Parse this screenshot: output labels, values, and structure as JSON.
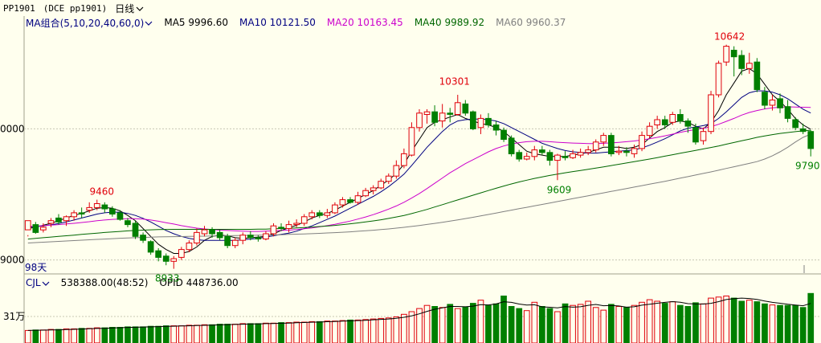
{
  "header": {
    "symbol": "PP1901",
    "contract": "(DCE pp1901)",
    "period": "日线",
    "period_icon": "chevron-down-icon"
  },
  "ma_legend": {
    "group_label": "MA组合(5,10,20,40,60,0)",
    "items": [
      {
        "label": "MA5 9996.60",
        "color": "#000000"
      },
      {
        "label": "MA10 10121.50",
        "color": "#000080"
      },
      {
        "label": "MA20 10163.45",
        "color": "#CC00CC"
      },
      {
        "label": "MA40 9989.92",
        "color": "#006600"
      },
      {
        "label": "MA60 9960.37",
        "color": "#808080"
      }
    ]
  },
  "price_axis": {
    "labels": [
      "0000",
      "9000"
    ]
  },
  "days_label": "98天",
  "annotations": {
    "high_left": "9460",
    "low_left": "8933",
    "high_mid": "10301",
    "low_mid": "9609",
    "high_right": "10642",
    "last": "9790"
  },
  "volume_legend": {
    "label": "CJL",
    "cjl": "538388.00(48:52)",
    "opid": "OPID 448736.00"
  },
  "volume_axis": {
    "label": "31万"
  },
  "colors": {
    "background": "#FFFFEE",
    "up": "#E0000A",
    "down": "#007F00",
    "grid": "#C8C8B4"
  },
  "chart_data": {
    "type": "candlestick",
    "ylim": [
      8900,
      10750
    ],
    "candles": [
      [
        9230,
        9300,
        9190,
        9180
      ],
      [
        9270,
        9210,
        9290,
        9200
      ],
      [
        9230,
        9250,
        9280,
        9210
      ],
      [
        9280,
        9300,
        9320,
        9250
      ],
      [
        9320,
        9290,
        9350,
        9270
      ],
      [
        9300,
        9330,
        9340,
        9260
      ],
      [
        9330,
        9360,
        9380,
        9300
      ],
      [
        9360,
        9350,
        9400,
        9320
      ],
      [
        9380,
        9400,
        9440,
        9360
      ],
      [
        9400,
        9430,
        9460,
        9380
      ],
      [
        9420,
        9390,
        9440,
        9360
      ],
      [
        9390,
        9350,
        9410,
        9330
      ],
      [
        9360,
        9310,
        9380,
        9300
      ],
      [
        9300,
        9270,
        9320,
        9250
      ],
      [
        9280,
        9180,
        9300,
        9160
      ],
      [
        9190,
        9150,
        9210,
        9130
      ],
      [
        9140,
        9060,
        9150,
        9040
      ],
      [
        9070,
        9020,
        9090,
        8990
      ],
      [
        9030,
        8990,
        9050,
        8960
      ],
      [
        8990,
        9010,
        9030,
        8933
      ],
      [
        9020,
        9080,
        9100,
        9000
      ],
      [
        9080,
        9130,
        9150,
        9060
      ],
      [
        9130,
        9210,
        9240,
        9110
      ],
      [
        9200,
        9230,
        9260,
        9180
      ],
      [
        9230,
        9200,
        9250,
        9170
      ],
      [
        9210,
        9170,
        9230,
        9150
      ],
      [
        9180,
        9110,
        9200,
        9090
      ],
      [
        9110,
        9150,
        9170,
        9090
      ],
      [
        9150,
        9190,
        9210,
        9120
      ],
      [
        9190,
        9170,
        9220,
        9150
      ],
      [
        9170,
        9160,
        9190,
        9140
      ],
      [
        9160,
        9200,
        9220,
        9150
      ],
      [
        9200,
        9260,
        9280,
        9180
      ],
      [
        9250,
        9240,
        9280,
        9220
      ],
      [
        9240,
        9270,
        9300,
        9210
      ],
      [
        9270,
        9280,
        9310,
        9250
      ],
      [
        9280,
        9330,
        9350,
        9260
      ],
      [
        9330,
        9360,
        9380,
        9310
      ],
      [
        9360,
        9340,
        9380,
        9320
      ],
      [
        9340,
        9360,
        9390,
        9320
      ],
      [
        9360,
        9420,
        9440,
        9350
      ],
      [
        9420,
        9460,
        9480,
        9400
      ],
      [
        9460,
        9440,
        9480,
        9430
      ],
      [
        9440,
        9490,
        9520,
        9420
      ],
      [
        9490,
        9530,
        9550,
        9480
      ],
      [
        9530,
        9550,
        9570,
        9500
      ],
      [
        9550,
        9600,
        9620,
        9540
      ],
      [
        9600,
        9640,
        9660,
        9580
      ],
      [
        9640,
        9720,
        9760,
        9620
      ],
      [
        9720,
        9810,
        9850,
        9700
      ],
      [
        9800,
        10010,
        10050,
        9790
      ],
      [
        10010,
        10120,
        10150,
        9980
      ],
      [
        10110,
        10130,
        10150,
        10040
      ],
      [
        10130,
        10050,
        10180,
        10020
      ],
      [
        10060,
        10120,
        10190,
        10010
      ],
      [
        10120,
        10110,
        10160,
        10050
      ],
      [
        10110,
        10200,
        10260,
        10100
      ],
      [
        10190,
        10120,
        10220,
        10100
      ],
      [
        10130,
        10000,
        10140,
        9990
      ],
      [
        10010,
        10080,
        10110,
        9960
      ],
      [
        10080,
        10030,
        10120,
        10010
      ],
      [
        10030,
        9990,
        10060,
        9950
      ],
      [
        9990,
        9920,
        10010,
        9900
      ],
      [
        9930,
        9810,
        9950,
        9790
      ],
      [
        9820,
        9770,
        9840,
        9750
      ],
      [
        9770,
        9790,
        9820,
        9760
      ],
      [
        9790,
        9840,
        9870,
        9760
      ],
      [
        9840,
        9820,
        9870,
        9800
      ],
      [
        9820,
        9760,
        9840,
        9720
      ],
      [
        9760,
        9800,
        9810,
        9609
      ],
      [
        9790,
        9780,
        9830,
        9760
      ],
      [
        9780,
        9810,
        9840,
        9770
      ],
      [
        9800,
        9820,
        9850,
        9780
      ],
      [
        9820,
        9840,
        9870,
        9800
      ],
      [
        9840,
        9900,
        9920,
        9820
      ],
      [
        9900,
        9950,
        9970,
        9870
      ],
      [
        9950,
        9810,
        9970,
        9790
      ],
      [
        9820,
        9830,
        9870,
        9800
      ],
      [
        9830,
        9820,
        9860,
        9790
      ],
      [
        9810,
        9850,
        9880,
        9780
      ],
      [
        9850,
        9950,
        9980,
        9830
      ],
      [
        9950,
        10020,
        10050,
        9930
      ],
      [
        10030,
        10070,
        10100,
        10000
      ],
      [
        10070,
        10030,
        10100,
        10000
      ],
      [
        10050,
        10110,
        10130,
        10030
      ],
      [
        10110,
        10060,
        10150,
        10040
      ],
      [
        10060,
        10020,
        10080,
        9970
      ],
      [
        10010,
        9900,
        10040,
        9880
      ],
      [
        9910,
        9980,
        10010,
        9880
      ],
      [
        9980,
        10260,
        10290,
        9960
      ],
      [
        10260,
        10500,
        10520,
        10240
      ],
      [
        10510,
        10630,
        10642,
        10480
      ],
      [
        10600,
        10550,
        10630,
        10400
      ],
      [
        10560,
        10460,
        10600,
        10410
      ],
      [
        10460,
        10500,
        10580,
        10420
      ],
      [
        10510,
        10300,
        10540,
        10280
      ],
      [
        10280,
        10180,
        10320,
        10150
      ],
      [
        10180,
        10220,
        10260,
        10140
      ],
      [
        10230,
        10160,
        10270,
        10120
      ],
      [
        10170,
        10080,
        10220,
        10050
      ],
      [
        10070,
        10010,
        10090,
        9990
      ],
      [
        10000,
        9980,
        10040,
        9960
      ],
      [
        9980,
        9850,
        9990,
        9790
      ]
    ],
    "ma_series": {
      "MA5": [
        9240,
        9250,
        9265,
        9280,
        9300,
        9320,
        9340,
        9355,
        9375,
        9395,
        9400,
        9395,
        9375,
        9340,
        9300,
        9240,
        9180,
        9120,
        9080,
        9050,
        9050,
        9065,
        9100,
        9150,
        9180,
        9190,
        9185,
        9170,
        9165,
        9170,
        9175,
        9180,
        9200,
        9225,
        9245,
        9265,
        9290,
        9320,
        9340,
        9355,
        9380,
        9410,
        9440,
        9470,
        9500,
        9530,
        9570,
        9610,
        9660,
        9730,
        9830,
        9920,
        10010,
        10050,
        10070,
        10090,
        10110,
        10080,
        10060,
        10040,
        10030,
        10010,
        9980,
        9930,
        9880,
        9830,
        9810,
        9800,
        9790,
        9790,
        9790,
        9800,
        9810,
        9820,
        9840,
        9860,
        9860,
        9860,
        9850,
        9860,
        9880,
        9930,
        9980,
        10010,
        10050,
        10060,
        10050,
        10020,
        10000,
        10050,
        10140,
        10260,
        10350,
        10440,
        10460,
        10420,
        10340,
        10260,
        10210,
        10150,
        10080,
        10030,
        9997
      ],
      "MA10": [
        9250,
        9255,
        9260,
        9268,
        9278,
        9290,
        9305,
        9320,
        9335,
        9350,
        9360,
        9365,
        9365,
        9355,
        9340,
        9318,
        9290,
        9258,
        9225,
        9200,
        9180,
        9165,
        9155,
        9150,
        9150,
        9150,
        9150,
        9150,
        9155,
        9160,
        9165,
        9175,
        9185,
        9195,
        9205,
        9220,
        9240,
        9260,
        9285,
        9310,
        9335,
        9365,
        9395,
        9425,
        9455,
        9485,
        9520,
        9560,
        9605,
        9655,
        9720,
        9790,
        9860,
        9920,
        9980,
        10030,
        10060,
        10070,
        10075,
        10075,
        10070,
        10060,
        10040,
        10010,
        9980,
        9950,
        9920,
        9890,
        9870,
        9850,
        9835,
        9825,
        9820,
        9815,
        9815,
        9820,
        9825,
        9830,
        9835,
        9840,
        9855,
        9875,
        9900,
        9925,
        9955,
        9985,
        10005,
        10015,
        10025,
        10040,
        10080,
        10130,
        10185,
        10240,
        10275,
        10290,
        10290,
        10280,
        10260,
        10230,
        10190,
        10150,
        10121
      ],
      "MA20": [
        9255,
        9258,
        9262,
        9266,
        9270,
        9275,
        9280,
        9286,
        9292,
        9300,
        9305,
        9310,
        9313,
        9315,
        9315,
        9312,
        9305,
        9296,
        9285,
        9274,
        9262,
        9252,
        9243,
        9237,
        9232,
        9228,
        9225,
        9222,
        9220,
        9218,
        9218,
        9220,
        9222,
        9225,
        9228,
        9232,
        9238,
        9245,
        9253,
        9262,
        9272,
        9284,
        9297,
        9312,
        9328,
        9346,
        9366,
        9388,
        9412,
        9440,
        9472,
        9507,
        9545,
        9585,
        9625,
        9665,
        9700,
        9735,
        9765,
        9795,
        9825,
        9850,
        9870,
        9885,
        9895,
        9902,
        9905,
        9905,
        9902,
        9898,
        9895,
        9892,
        9890,
        9888,
        9888,
        9890,
        9893,
        9897,
        9902,
        9908,
        9915,
        9925,
        9935,
        9947,
        9960,
        9973,
        9985,
        9995,
        10005,
        10017,
        10035,
        10057,
        10080,
        10105,
        10125,
        10140,
        10152,
        10160,
        10165,
        10168,
        10167,
        10165,
        10163
      ],
      "MA40": [
        9160,
        9165,
        9170,
        9175,
        9180,
        9185,
        9190,
        9195,
        9200,
        9205,
        9210,
        9214,
        9218,
        9222,
        9225,
        9228,
        9230,
        9232,
        9233,
        9234,
        9234,
        9234,
        9234,
        9234,
        9234,
        9234,
        9234,
        9234,
        9234,
        9234,
        9235,
        9236,
        9238,
        9240,
        9242,
        9245,
        9248,
        9251,
        9255,
        9259,
        9264,
        9270,
        9276,
        9283,
        9290,
        9298,
        9307,
        9317,
        9328,
        9340,
        9354,
        9370,
        9386,
        9404,
        9422,
        9440,
        9458,
        9476,
        9494,
        9512,
        9530,
        9547,
        9564,
        9580,
        9595,
        9609,
        9622,
        9634,
        9645,
        9655,
        9665,
        9674,
        9683,
        9692,
        9701,
        9710,
        9720,
        9730,
        9740,
        9750,
        9760,
        9770,
        9781,
        9792,
        9803,
        9814,
        9825,
        9836,
        9847,
        9858,
        9870,
        9883,
        9896,
        9909,
        9922,
        9935,
        9946,
        9956,
        9965,
        9972,
        9979,
        9985,
        9990
      ],
      "MA60": [
        9130,
        9133,
        9136,
        9139,
        9142,
        9145,
        9148,
        9151,
        9154,
        9157,
        9160,
        9163,
        9166,
        9168,
        9170,
        9172,
        9174,
        9176,
        9177,
        9178,
        9179,
        9180,
        9181,
        9182,
        9183,
        9184,
        9185,
        9186,
        9187,
        9188,
        9189,
        9190,
        9191,
        9193,
        9195,
        9197,
        9199,
        9201,
        9203,
        9206,
        9209,
        9212,
        9215,
        9219,
        9223,
        9227,
        9232,
        9237,
        9243,
        9249,
        9256,
        9263,
        9271,
        9279,
        9288,
        9297,
        9306,
        9316,
        9326,
        9336,
        9347,
        9358,
        9369,
        9380,
        9391,
        9402,
        9413,
        9424,
        9435,
        9446,
        9457,
        9468,
        9479,
        9490,
        9501,
        9512,
        9523,
        9534,
        9545,
        9556,
        9567,
        9578,
        9589,
        9600,
        9612,
        9624,
        9636,
        9648,
        9660,
        9672,
        9685,
        9698,
        9711,
        9724,
        9737,
        9750,
        9770,
        9795,
        9825,
        9860,
        9900,
        9935,
        9960
      ]
    },
    "volume": [
      24,
      25,
      25,
      26,
      26,
      27,
      27,
      28,
      28,
      29,
      29,
      30,
      30,
      31,
      31,
      31,
      32,
      32,
      33,
      33,
      33,
      34,
      34,
      35,
      35,
      36,
      36,
      36,
      37,
      37,
      37,
      38,
      38,
      39,
      39,
      40,
      40,
      41,
      41,
      42,
      42,
      43,
      44,
      44,
      45,
      46,
      47,
      48,
      50,
      55,
      60,
      66,
      72,
      70,
      68,
      74,
      66,
      69,
      76,
      82,
      72,
      75,
      90,
      70,
      66,
      62,
      78,
      70,
      66,
      60,
      75,
      72,
      74,
      80,
      68,
      63,
      74,
      70,
      68,
      72,
      78,
      83,
      80,
      76,
      79,
      72,
      70,
      77,
      75,
      86,
      88,
      90,
      86,
      80,
      82,
      79,
      75,
      73,
      72,
      72,
      72,
      68,
      95
    ],
    "volume_ylim": [
      0,
      100
    ]
  }
}
